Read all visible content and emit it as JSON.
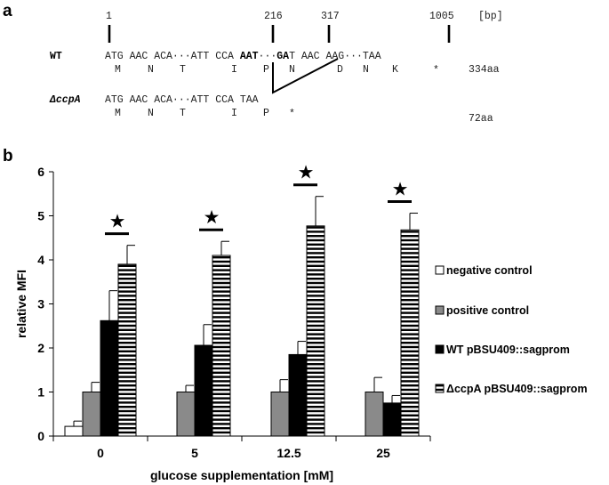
{
  "panel_a": {
    "letter": "a",
    "positions": [
      "1",
      "216",
      "317",
      "1005"
    ],
    "unit_bp": "[bp]",
    "wt": {
      "label": "WT",
      "codons_pre": "ATG AAC ACA···ATT CCA ",
      "codons_bold1": "AAT",
      "codons_dots": "···",
      "codons_bold2": "GA",
      "codons_post": "T AAC AAG···TAA",
      "aa": [
        "M",
        "N",
        "T",
        "I",
        "P",
        "N",
        "D",
        "N",
        "K",
        "*"
      ],
      "length": "334aa"
    },
    "ccpa": {
      "label": "ΔccpA",
      "codons": "ATG AAC ACA···ATT CCA TAA",
      "aa": [
        "M",
        "N",
        "T",
        "I",
        "P",
        "*"
      ],
      "length": "72aa"
    }
  },
  "panel_b": {
    "letter": "b",
    "star_symbol": "★"
  },
  "chart_data": {
    "type": "bar",
    "xlabel": "glucose supplementation [mM]",
    "ylabel": "relative MFI",
    "ylim": [
      0,
      6
    ],
    "yticks": [
      "0",
      "1",
      "2",
      "3",
      "4",
      "5",
      "6"
    ],
    "categories": [
      "0",
      "5",
      "12.5",
      "25"
    ],
    "legend_position": "right",
    "series": [
      {
        "name": "negative control",
        "fill": "white",
        "color": "#ffffff",
        "values": [
          0.22,
          null,
          null,
          null
        ],
        "errors": [
          0.12,
          null,
          null,
          null
        ]
      },
      {
        "name": "positive control",
        "fill": "gray",
        "color": "#8a8a8a",
        "values": [
          1.0,
          1.0,
          1.0,
          1.0
        ],
        "errors": [
          0.22,
          0.15,
          0.28,
          0.33
        ]
      },
      {
        "name": "WT pBSU409::sagprom",
        "fill": "black",
        "color": "#000000",
        "values": [
          2.62,
          2.06,
          1.85,
          0.75
        ],
        "errors": [
          0.68,
          0.47,
          0.3,
          0.17
        ]
      },
      {
        "name": "ΔccpA pBSU409::sagprom",
        "fill": "stripes",
        "color": "#000000",
        "values": [
          3.9,
          4.1,
          4.77,
          4.68
        ],
        "errors": [
          0.43,
          0.32,
          0.67,
          0.38
        ]
      }
    ],
    "significance": [
      true,
      true,
      true,
      true
    ]
  }
}
